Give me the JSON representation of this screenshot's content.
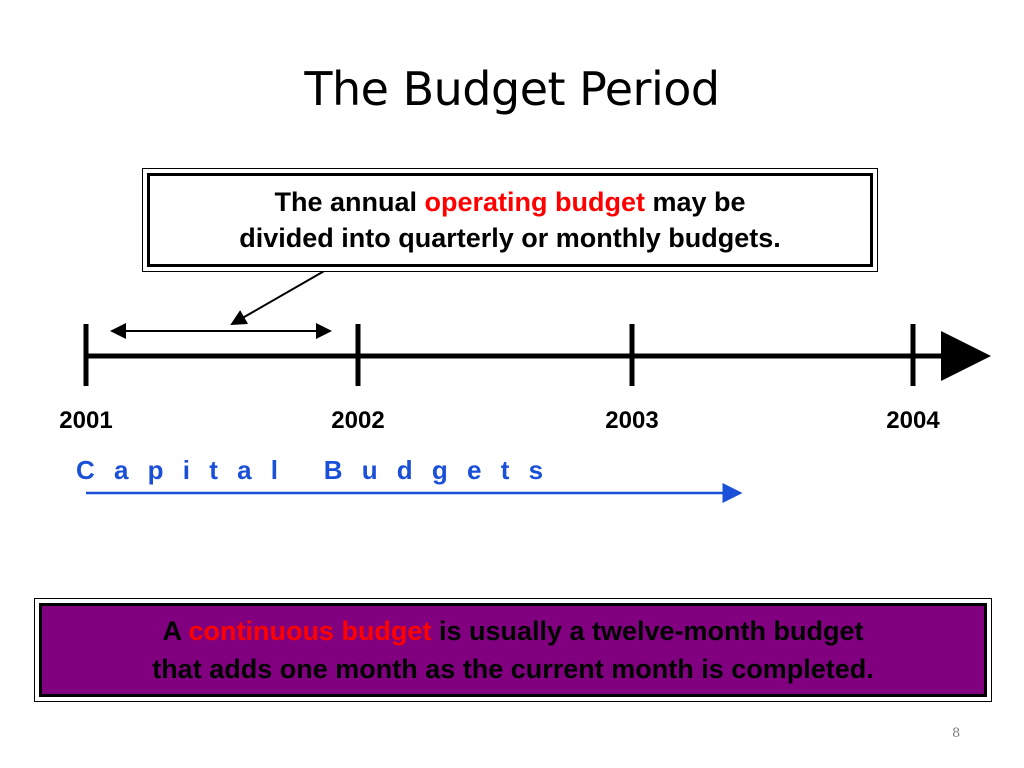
{
  "slide": {
    "title": "The Budget Period",
    "page_number": "8"
  },
  "callout": {
    "text_before": "The annual ",
    "highlight": "operating budget",
    "text_after": " may be",
    "line2": "divided into quarterly or monthly budgets."
  },
  "timeline": {
    "years": [
      "2001",
      "2002",
      "2003",
      "2004"
    ]
  },
  "capital": {
    "label": "C a p i t a l   B u d g e t s"
  },
  "continuous": {
    "text_before": "A ",
    "highlight": "continuous budget",
    "text_after": " is usually a twelve-month budget",
    "line2": "that adds one month as the current month is completed."
  },
  "colors": {
    "highlight": "#ff0000",
    "capital_arrow": "#1a4fd8",
    "continuous_box_bg": "#800080"
  }
}
